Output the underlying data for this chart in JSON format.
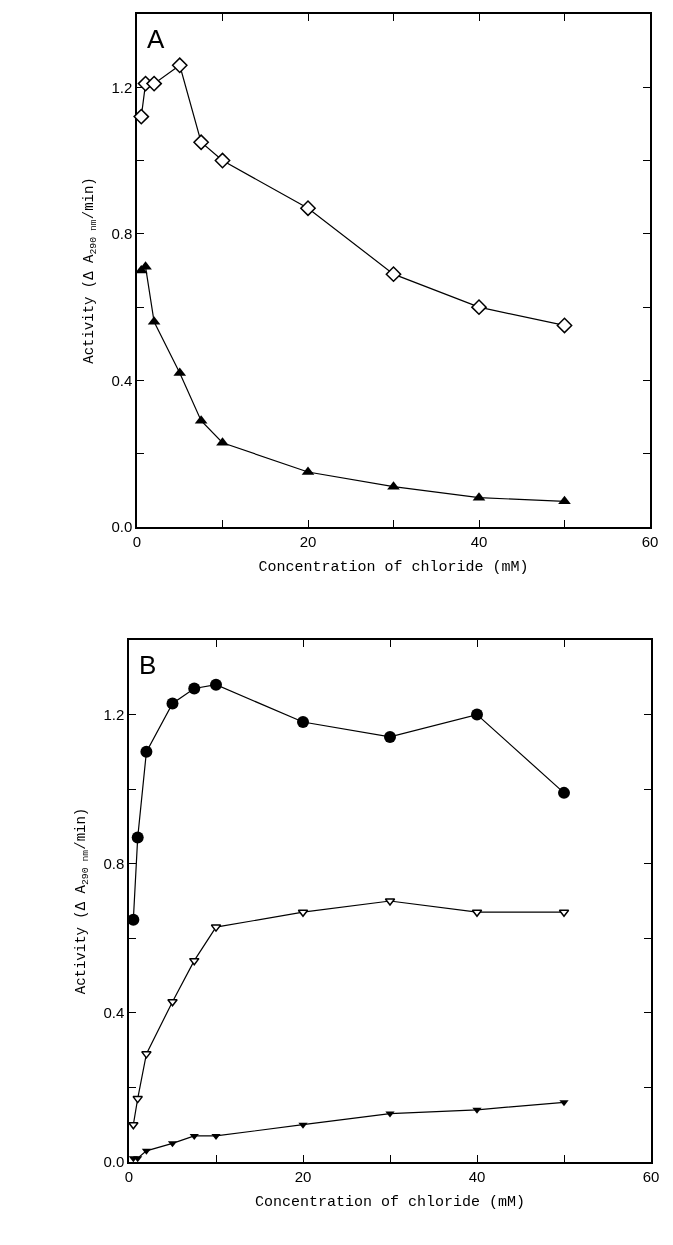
{
  "chart_data": [
    {
      "type": "line",
      "xlabel": "Concentration of chloride (mM)",
      "ylabel": "Activity (Δ A$_{290 nm}$/min)",
      "annotations": [
        "A"
      ],
      "xlim": [
        0,
        60
      ],
      "xticks": [
        0,
        {
          "value": 10,
          "label": null
        },
        20,
        {
          "value": 30,
          "label": null
        },
        40,
        {
          "value": 50,
          "label": null
        },
        60
      ],
      "ylim": [
        0,
        1.4
      ],
      "yticks": [
        "0.0",
        {
          "value": 0.2,
          "label": null
        },
        {
          "value": 0.4,
          "label": "0.4"
        },
        {
          "value": 0.6,
          "label": null
        },
        {
          "value": 0.8,
          "label": "0.8"
        },
        {
          "value": 1.0,
          "label": null
        },
        {
          "value": 1.2,
          "label": "1.2"
        }
      ],
      "grid": false,
      "line_style": "solid",
      "series": [
        {
          "color": "#000000",
          "marker": "diamond-open",
          "x": [
            0.5,
            1,
            2,
            5,
            7.5,
            10,
            20,
            30,
            40,
            50
          ],
          "values": [
            1.12,
            1.21,
            1.21,
            1.26,
            1.05,
            1.0,
            0.87,
            0.69,
            0.6,
            0.55
          ]
        },
        {
          "color": "#000000",
          "marker": "triangle",
          "x": [
            0.5,
            1,
            2,
            5,
            7.5,
            10,
            20,
            30,
            40,
            50
          ],
          "values": [
            0.7,
            0.71,
            0.56,
            0.42,
            0.29,
            0.23,
            0.15,
            0.11,
            0.08,
            0.07
          ]
        }
      ]
    },
    {
      "type": "line",
      "xlabel": "Concentration of chloride (mM)",
      "ylabel": "Activity (Δ A$_{290 nm}$/min)",
      "annotations": [
        "B"
      ],
      "xlim": [
        0,
        60
      ],
      "xticks": [
        0,
        {
          "value": 10,
          "label": null
        },
        20,
        {
          "value": 30,
          "label": null
        },
        40,
        {
          "value": 50,
          "label": null
        },
        60
      ],
      "ylim": [
        0,
        1.4
      ],
      "yticks": [
        {
          "value": 0,
          "label": "0.0"
        },
        {
          "value": 0.2,
          "label": null
        },
        {
          "value": 0.4,
          "label": "0.4"
        },
        {
          "value": 0.6,
          "label": null
        },
        {
          "value": 0.8,
          "label": "0.8"
        },
        {
          "value": 1.0,
          "label": null
        },
        {
          "value": 1.2,
          "label": "1.2"
        }
      ],
      "grid": false,
      "line_style": "solid",
      "series": [
        {
          "color": "#000000",
          "marker": "circle",
          "x": [
            0.5,
            1,
            2,
            5,
            7.5,
            10,
            20,
            30,
            40,
            50
          ],
          "values": [
            0.65,
            0.87,
            1.1,
            1.23,
            1.27,
            1.28,
            1.18,
            1.14,
            1.2,
            0.99
          ]
        },
        {
          "color": "#000000",
          "marker": "triangle-down-open",
          "x": [
            0.5,
            1,
            2,
            5,
            7.5,
            10,
            20,
            30,
            40,
            50
          ],
          "values": [
            0.1,
            0.17,
            0.29,
            0.43,
            0.54,
            0.63,
            0.67,
            0.7,
            0.67,
            0.67
          ]
        },
        {
          "color": "#000000",
          "marker": "triangle-down",
          "x": [
            0.5,
            1,
            2,
            5,
            7.5,
            10,
            20,
            30,
            40,
            50
          ],
          "values": [
            0.01,
            0.01,
            0.03,
            0.05,
            0.07,
            0.07,
            0.1,
            0.13,
            0.14,
            0.16
          ]
        }
      ]
    }
  ]
}
